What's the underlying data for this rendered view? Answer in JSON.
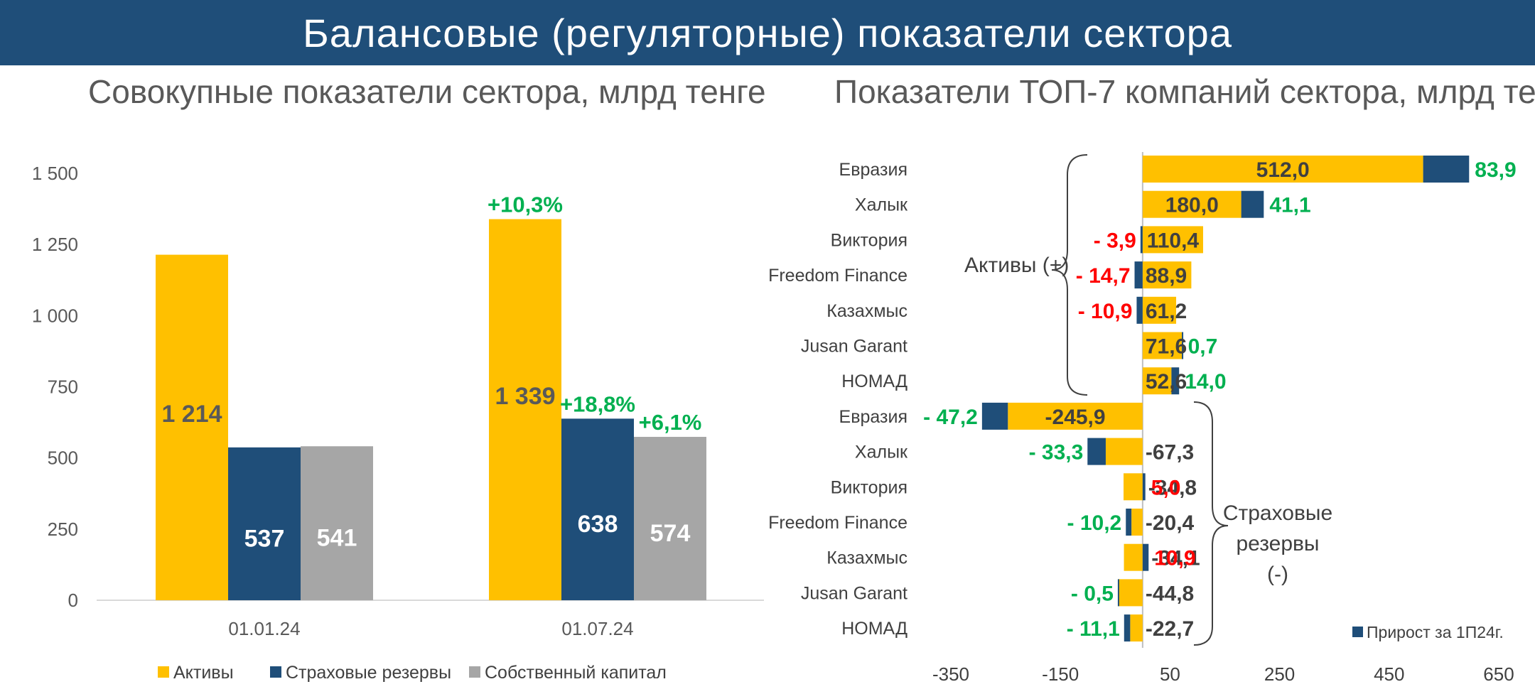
{
  "header": {
    "title": "Балансовые (регуляторные) показатели сектора"
  },
  "left_chart": {
    "subtitle": "Совокупные показатели сектора, млрд тенге"
  },
  "right_chart": {
    "subtitle": "Показатели ТОП-7 компаний сектора, млрд тенге"
  },
  "chart_data": [
    {
      "type": "bar",
      "title": "Совокупные показатели сектора, млрд тенге",
      "categories": [
        "01.01.24",
        "01.07.24"
      ],
      "series": [
        {
          "name": "Активы",
          "values": [
            1214,
            1339
          ],
          "labels": [
            "1 214",
            "1 339"
          ],
          "color": "#ffc000"
        },
        {
          "name": "Страховые резервы",
          "values": [
            537,
            638
          ],
          "labels": [
            "537",
            "638"
          ],
          "color": "#1f4e79"
        },
        {
          "name": "Собственный капитал",
          "values": [
            541,
            574
          ],
          "labels": [
            "541",
            "574"
          ],
          "color": "#a6a6a6"
        }
      ],
      "growth_labels": {
        "Активы": "+10,3%",
        "Страховые резервы": "+18,8%",
        "Собственный капитал": "+6,1%"
      },
      "yticks": [
        0,
        250,
        500,
        750,
        1000,
        1250,
        1500
      ],
      "ytick_labels": [
        "0",
        "250",
        "500",
        "750",
        "1 000",
        "1 250",
        "1 500"
      ],
      "ylim": [
        0,
        1500
      ],
      "grid": false,
      "legend": "bottom"
    },
    {
      "type": "bar",
      "orientation": "horizontal",
      "stacked": true,
      "title": "Показатели ТОП-7 компаний сектора, млрд тенге",
      "xlim": [
        -350,
        650
      ],
      "xticks": [
        -350,
        -150,
        50,
        250,
        450,
        650
      ],
      "xtick_labels": [
        "-350",
        "-150",
        "50",
        "250",
        "450",
        "650"
      ],
      "legend": "bottom-right",
      "legend_label": "Прирост за 1П24г.",
      "colors": {
        "base": "#ffc000",
        "growth": "#1f4e79",
        "positive_text": "#00b050",
        "negative_text": "#ff0000",
        "value_text": "#404040"
      },
      "groups": [
        {
          "name": "Активы (+)",
          "rows": [
            {
              "category": "Евразия",
              "base": 512.0,
              "growth": 83.9,
              "base_label": "512,0",
              "growth_label": "83,9"
            },
            {
              "category": "Халык",
              "base": 180.0,
              "growth": 41.1,
              "base_label": "180,0",
              "growth_label": "41,1"
            },
            {
              "category": "Виктория",
              "base": 110.4,
              "growth": -3.9,
              "base_label": "110,4",
              "growth_label": "- 3,9"
            },
            {
              "category": "Freedom Finance",
              "base": 88.9,
              "growth": -14.7,
              "base_label": "88,9",
              "growth_label": "- 14,7"
            },
            {
              "category": "Казахмыс",
              "base": 61.2,
              "growth": -10.9,
              "base_label": "61,2",
              "growth_label": "- 10,9"
            },
            {
              "category": "Jusan Garant",
              "base": 71.6,
              "growth": 0.7,
              "base_label": "71,6",
              "growth_label": "0,7"
            },
            {
              "category": "НОМАД",
              "base": 52.6,
              "growth": 14.0,
              "base_label": "52,6",
              "growth_label": "14,0"
            }
          ]
        },
        {
          "name": "Страховые резервы (-)",
          "rows": [
            {
              "category": "Евразия",
              "base": -245.9,
              "growth": -47.2,
              "base_label": "-245,9",
              "growth_label": "- 47,2"
            },
            {
              "category": "Халык",
              "base": -67.3,
              "growth": -33.3,
              "base_label": "-67,3",
              "growth_label": "- 33,3"
            },
            {
              "category": "Виктория",
              "base": -34.8,
              "growth": 5.0,
              "base_label": "-34,8",
              "growth_label": "5,0"
            },
            {
              "category": "Freedom Finance",
              "base": -20.4,
              "growth": -10.2,
              "base_label": "-20,4",
              "growth_label": "- 10,2"
            },
            {
              "category": "Казахмыс",
              "base": -34.1,
              "growth": 10.9,
              "base_label": "-34,1",
              "growth_label": "10,9"
            },
            {
              "category": "Jusan Garant",
              "base": -44.8,
              "growth": -0.5,
              "base_label": "-44,8",
              "growth_label": "- 0,5"
            },
            {
              "category": "НОМАД",
              "base": -22.7,
              "growth": -11.1,
              "base_label": "-22,7",
              "growth_label": "- 11,1"
            }
          ]
        }
      ],
      "group_labels": {
        "assets": [
          "Активы (+)"
        ],
        "reserves": [
          "Страховые",
          "резервы",
          "(-)"
        ]
      }
    }
  ]
}
